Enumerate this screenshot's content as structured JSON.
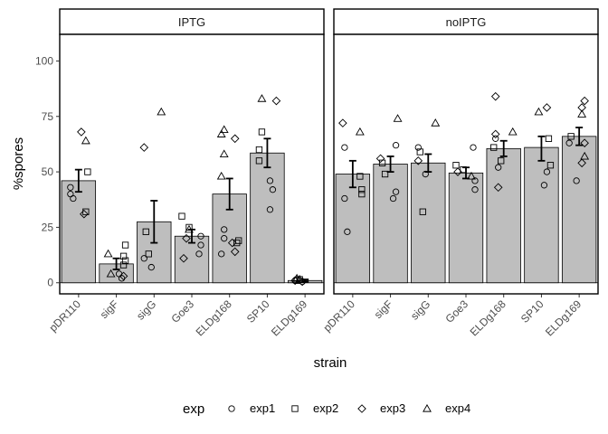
{
  "chart_data": {
    "type": "bar",
    "xlabel": "strain",
    "ylabel": "%spores",
    "ylim": [
      -5,
      112
    ],
    "yticks": [
      0,
      25,
      50,
      75,
      100
    ],
    "categories": [
      "pDR110",
      "sigF",
      "sigG",
      "Goe3",
      "ELDg168",
      "SP10",
      "ELDg169"
    ],
    "legend": {
      "title": "exp",
      "position": "bottom",
      "entries": [
        {
          "label": "exp1",
          "shape": "circle"
        },
        {
          "label": "exp2",
          "shape": "square"
        },
        {
          "label": "exp3",
          "shape": "diamond"
        },
        {
          "label": "exp4",
          "shape": "triangle"
        }
      ]
    },
    "colors": {
      "bar_fill": "#bebebe",
      "bar_stroke": "#000000",
      "panel_border": "#000000"
    },
    "facets": [
      {
        "label": "IPTG",
        "bars": [
          {
            "mean": 46,
            "err": [
              41,
              51
            ],
            "points": {
              "exp1": [
                40,
                38,
                43
              ],
              "exp2": [
                50,
                32
              ],
              "exp3": [
                68,
                31
              ],
              "exp4": [
                64
              ]
            }
          },
          {
            "mean": 8.5,
            "err": [
              6,
              11
            ],
            "points": {
              "exp1": [
                2,
                4
              ],
              "exp2": [
                17,
                12,
                10,
                8
              ],
              "exp3": [
                3
              ],
              "exp4": [
                13,
                4
              ]
            }
          },
          {
            "mean": 27.5,
            "err": [
              18,
              37
            ],
            "points": {
              "exp1": [
                7,
                11
              ],
              "exp2": [
                13,
                23
              ],
              "exp3": [
                61
              ],
              "exp4": [
                77
              ]
            }
          },
          {
            "mean": 21,
            "err": [
              18,
              24
            ],
            "points": {
              "exp1": [
                17,
                13,
                21
              ],
              "exp2": [
                30,
                25
              ],
              "exp3": [
                11,
                20
              ],
              "exp4": [
                24
              ]
            }
          },
          {
            "mean": 40,
            "err": [
              33,
              47
            ],
            "points": {
              "exp1": [
                20,
                13,
                24
              ],
              "exp2": [
                18,
                19
              ],
              "exp3": [
                14,
                18,
                65
              ],
              "exp4": [
                69,
                67,
                58,
                48
              ]
            }
          },
          {
            "mean": 58.5,
            "err": [
              52,
              65
            ],
            "points": {
              "exp1": [
                46,
                42,
                33
              ],
              "exp2": [
                60,
                68,
                55
              ],
              "exp3": [
                82
              ],
              "exp4": [
                83
              ]
            }
          },
          {
            "mean": 1,
            "err": [
              0.5,
              1.5
            ],
            "points": {
              "exp1": [
                1,
                0.5
              ],
              "exp2": [
                1,
                1.5
              ],
              "exp3": [
                0.5,
                1
              ],
              "exp4": [
                1.5,
                2
              ]
            }
          }
        ]
      },
      {
        "label": "noIPTG",
        "bars": [
          {
            "mean": 49,
            "err": [
              43,
              55
            ],
            "points": {
              "exp1": [
                38,
                23,
                61
              ],
              "exp2": [
                40,
                48,
                42
              ],
              "exp3": [
                72
              ],
              "exp4": [
                68
              ]
            }
          },
          {
            "mean": 53.5,
            "err": [
              50,
              57
            ],
            "points": {
              "exp1": [
                41,
                38,
                62
              ],
              "exp2": [
                49,
                54
              ],
              "exp3": [
                56
              ],
              "exp4": [
                74
              ]
            }
          },
          {
            "mean": 54,
            "err": [
              50,
              58
            ],
            "points": {
              "exp1": [
                49,
                61
              ],
              "exp2": [
                32,
                59
              ],
              "exp3": [
                55
              ],
              "exp4": [
                72
              ]
            }
          },
          {
            "mean": 49.5,
            "err": [
              47,
              52
            ],
            "points": {
              "exp1": [
                42,
                61,
                46
              ],
              "exp2": [
                53,
                51
              ],
              "exp3": [
                50
              ],
              "exp4": [
                48
              ]
            }
          },
          {
            "mean": 60.5,
            "err": [
              57,
              64
            ],
            "points": {
              "exp1": [
                52,
                65
              ],
              "exp2": [
                61,
                55
              ],
              "exp3": [
                84,
                43,
                67
              ],
              "exp4": [
                68
              ]
            }
          },
          {
            "mean": 61,
            "err": [
              55,
              66
            ],
            "points": {
              "exp1": [
                44,
                50
              ],
              "exp2": [
                65,
                53
              ],
              "exp3": [
                79
              ],
              "exp4": [
                77
              ]
            }
          },
          {
            "mean": 66,
            "err": [
              62,
              70
            ],
            "points": {
              "exp1": [
                63,
                46
              ],
              "exp2": [
                66
              ],
              "exp3": [
                82,
                79,
                63,
                54
              ],
              "exp4": [
                76,
                57
              ]
            }
          }
        ]
      }
    ]
  }
}
